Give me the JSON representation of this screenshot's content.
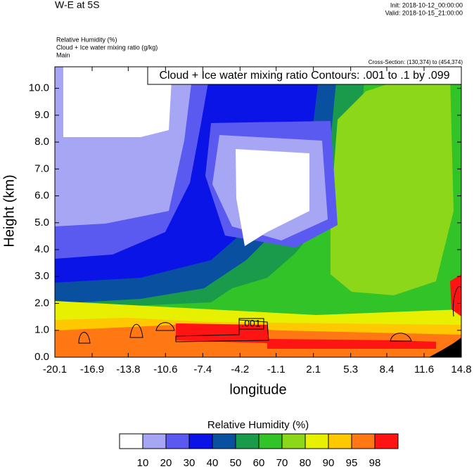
{
  "chart_data": {
    "type": "contour",
    "title": "W-E at 5S",
    "init": "Init: 2018-10-12_00:00:00",
    "valid": "Valid: 2018-10-15_21:00:00",
    "fields": [
      "Relative Humidity   (%)",
      "Cloud + Ice water mixing ratio   (g/kg)",
      "Main"
    ],
    "cross_section": "Cross-Section: (130,374) to (454,374)",
    "contour_info": "Cloud + Ice water mixing ratio Contours: .001 to .1 by .099",
    "contour_label": ".001",
    "xlabel": "longitude",
    "ylabel": "Height (km)",
    "xlim": [
      -20.1,
      14.8
    ],
    "xticks": [
      -20.1,
      -16.9,
      -13.8,
      -10.6,
      -7.4,
      -4.2,
      -1.1,
      2.1,
      5.3,
      8.4,
      11.6,
      14.8
    ],
    "ylim": [
      0,
      10.8
    ],
    "yticks": [
      {
        "value": 0,
        "label": "0.0"
      },
      {
        "value": 1,
        "label": "1.0"
      },
      {
        "value": 2,
        "label": "2.0"
      },
      {
        "value": 3,
        "label": "3.0"
      },
      {
        "value": 4,
        "label": "4.0"
      },
      {
        "value": 5,
        "label": "5.0"
      },
      {
        "value": 6,
        "label": "6.0"
      },
      {
        "value": 7,
        "label": "7.0"
      },
      {
        "value": 8,
        "label": "8.0"
      },
      {
        "value": 9,
        "label": "9.0"
      },
      {
        "value": 10,
        "label": "10.0"
      }
    ],
    "colorbar": {
      "title": "Relative Humidity  (%)",
      "levels": [
        10,
        20,
        30,
        40,
        50,
        60,
        70,
        80,
        90,
        95,
        98
      ],
      "colors": [
        "#ffffff",
        "#a6a6f5",
        "#5a5af0",
        "#0a14e6",
        "#0a50a0",
        "#199b4b",
        "#32c328",
        "#8cd719",
        "#e6f000",
        "#ffc800",
        "#ff7814",
        "#ff1414"
      ]
    }
  }
}
